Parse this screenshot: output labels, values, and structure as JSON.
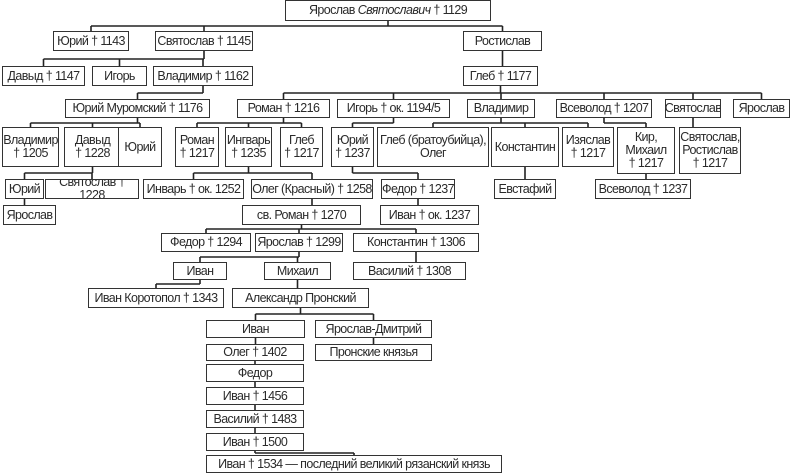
{
  "root": {
    "name": "Ярослав",
    "patronymic": "Святославич",
    "death": "† 1129"
  },
  "nodes": [
    {
      "id": "yuri1143",
      "label": "Юрий † 1143",
      "parent": "root"
    },
    {
      "id": "svyat1145",
      "label": "Святослав † 1145",
      "parent": "root"
    },
    {
      "id": "rostislav",
      "label": "Ростислав",
      "parent": "root"
    },
    {
      "id": "davyd1147",
      "label": "Давыд † 1147",
      "parent": "svyat1145"
    },
    {
      "id": "igor",
      "label": "Игорь",
      "parent": "svyat1145"
    },
    {
      "id": "vlad1162",
      "label": "Владимир † 1162",
      "parent": "svyat1145"
    },
    {
      "id": "gleb1177",
      "label": "Глеб † 1177",
      "parent": "rostislav"
    },
    {
      "id": "yuriMur",
      "label": "Юрий Муромский † 1176",
      "parent": "vlad1162"
    },
    {
      "id": "roman1216",
      "label": "Роман † 1216",
      "parent": "gleb1177"
    },
    {
      "id": "igor1194",
      "label": "Игорь † ок. 1194/5",
      "parent": "gleb1177"
    },
    {
      "id": "vlad",
      "label": "Владимир",
      "parent": "gleb1177"
    },
    {
      "id": "vsev1207",
      "label": "Всеволод † 1207",
      "parent": "gleb1177"
    },
    {
      "id": "svyatoslav",
      "label": "Святослав",
      "parent": "gleb1177"
    },
    {
      "id": "yaroslav",
      "label": "Ярослав",
      "parent": "gleb1177"
    },
    {
      "id": "vlad1205",
      "label": "Владимир\n† 1205",
      "parent": "yuriMur"
    },
    {
      "id": "davyd1228",
      "label": "Давыд\n† 1228",
      "parent": "yuriMur"
    },
    {
      "id": "yuriM",
      "label": "Юрий",
      "parent": "yuriMur"
    },
    {
      "id": "roman1217",
      "label": "Роман\n† 1217",
      "parent": "roman1216"
    },
    {
      "id": "ingvar1235",
      "label": "Ингварь\n† 1235",
      "parent": "roman1216"
    },
    {
      "id": "gleb1217",
      "label": "Глеб\n† 1217",
      "parent": "roman1216"
    },
    {
      "id": "yuri1237",
      "label": "Юрий\n† 1237",
      "parent": "igor1194"
    },
    {
      "id": "glebBrat",
      "label": "Глеб (братоубийца),\nОлег",
      "parent": "vlad"
    },
    {
      "id": "konst",
      "label": "Константин",
      "parent": "vlad"
    },
    {
      "id": "izyaslav",
      "label": "Изяслав\n† 1217",
      "parent": "vlad"
    },
    {
      "id": "kir",
      "label": "Кир,\nМихаил\n† 1217",
      "parent": "vsev1207"
    },
    {
      "id": "svyatRost",
      "label": "Святослав,\nРостислав\n† 1217",
      "parent": "svyatoslav"
    },
    {
      "id": "yuriD",
      "label": "Юрий",
      "parent": "davyd1228"
    },
    {
      "id": "svyat1228",
      "label": "Святослав † 1228",
      "parent": "davyd1228"
    },
    {
      "id": "invar1252",
      "label": "Инварь † ок. 1252",
      "parent": "ingvar1235"
    },
    {
      "id": "oleg1258",
      "label": "Олег (Красный) † 1258",
      "parent": "ingvar1235"
    },
    {
      "id": "fedor1237",
      "label": "Федор † 1237",
      "parent": "yuri1237"
    },
    {
      "id": "evstafiy",
      "label": "Евстафий",
      "parent": "konst"
    },
    {
      "id": "vsev1237",
      "label": "Всеволод † 1237",
      "parent": "kir"
    },
    {
      "id": "yaroslavY",
      "label": "Ярослав",
      "parent": "yuriD"
    },
    {
      "id": "roman1270",
      "label": "св. Роман † 1270",
      "parent": "oleg1258"
    },
    {
      "id": "ivan1237",
      "label": "Иван † ок. 1237",
      "parent": "fedor1237"
    },
    {
      "id": "fedor1294",
      "label": "Федор † 1294",
      "parent": "roman1270"
    },
    {
      "id": "yar1299",
      "label": "Ярослав † 1299",
      "parent": "roman1270"
    },
    {
      "id": "konst1306",
      "label": "Константин † 1306",
      "parent": "roman1270"
    },
    {
      "id": "ivanA",
      "label": "Иван",
      "parent": "yar1299"
    },
    {
      "id": "mikhail",
      "label": "Михаил",
      "parent": "yar1299"
    },
    {
      "id": "vas1308",
      "label": "Василий † 1308",
      "parent": "konst1306"
    },
    {
      "id": "korotopol",
      "label": "Иван Коротопол † 1343",
      "parent": "ivanA"
    },
    {
      "id": "aleksandr",
      "label": "Александр Пронский",
      "parent": "mikhail"
    },
    {
      "id": "ivanB",
      "label": "Иван",
      "parent": "aleksandr"
    },
    {
      "id": "yarDm",
      "label": "Ярослав-Дмитрий",
      "parent": "aleksandr"
    },
    {
      "id": "oleg1402",
      "label": "Олег † 1402",
      "parent": "ivanB"
    },
    {
      "id": "pronskie",
      "label": "Пронские князья",
      "parent": "yarDm"
    },
    {
      "id": "fedorC",
      "label": "Федор",
      "parent": "oleg1402"
    },
    {
      "id": "ivan1456",
      "label": "Иван † 1456",
      "parent": "fedorC"
    },
    {
      "id": "vas1483",
      "label": "Василий † 1483",
      "parent": "ivan1456"
    },
    {
      "id": "ivan1500",
      "label": "Иван † 1500",
      "parent": "vas1483"
    },
    {
      "id": "ivan1534",
      "label": "Иван † 1534 — последний великий рязанский князь",
      "parent": "ivan1500"
    }
  ]
}
